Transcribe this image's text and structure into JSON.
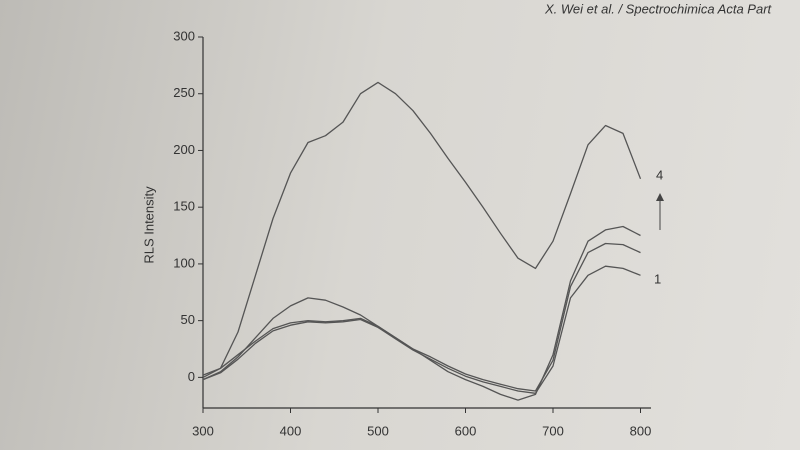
{
  "chart_data": {
    "type": "line",
    "source": "X. Wei et al. / Spectrochimica Acta Part",
    "ylabel": "RLS Intensity",
    "annotations": [
      "4",
      "1"
    ],
    "x": [
      300,
      320,
      340,
      360,
      380,
      400,
      420,
      440,
      460,
      480,
      500,
      520,
      540,
      560,
      580,
      600,
      620,
      640,
      660,
      680,
      700,
      720,
      740,
      760,
      780,
      800
    ],
    "series": [
      {
        "color": "#555555",
        "values": [
          0,
          8,
          40,
          90,
          140,
          180,
          207,
          213,
          225,
          250,
          260,
          250,
          235,
          215,
          193,
          172,
          150,
          127,
          105,
          96,
          120,
          162,
          205,
          222,
          215,
          175
        ]
      },
      {
        "color": "#555555",
        "values": [
          -2,
          5,
          18,
          35,
          52,
          63,
          70,
          68,
          62,
          55,
          45,
          35,
          25,
          15,
          5,
          -2,
          -8,
          -15,
          -20,
          -15,
          20,
          85,
          120,
          130,
          133,
          125
        ]
      },
      {
        "color": "#555555",
        "values": [
          2,
          8,
          20,
          32,
          43,
          48,
          50,
          49,
          50,
          52,
          45,
          35,
          25,
          18,
          10,
          3,
          -2,
          -6,
          -10,
          -12,
          15,
          80,
          110,
          118,
          117,
          110
        ]
      },
      {
        "color": "#555555",
        "values": [
          -2,
          4,
          16,
          30,
          41,
          46,
          49,
          48,
          49,
          51,
          44,
          34,
          24,
          16,
          8,
          1,
          -4,
          -8,
          -12,
          -14,
          10,
          70,
          90,
          98,
          96,
          90
        ]
      }
    ],
    "xlim": [
      300,
      812
    ],
    "xticks": [
      300,
      400,
      500,
      600,
      700,
      800
    ],
    "ylim": [
      -27,
      300
    ],
    "yticks": [
      0,
      50,
      100,
      150,
      200,
      250,
      300
    ]
  }
}
